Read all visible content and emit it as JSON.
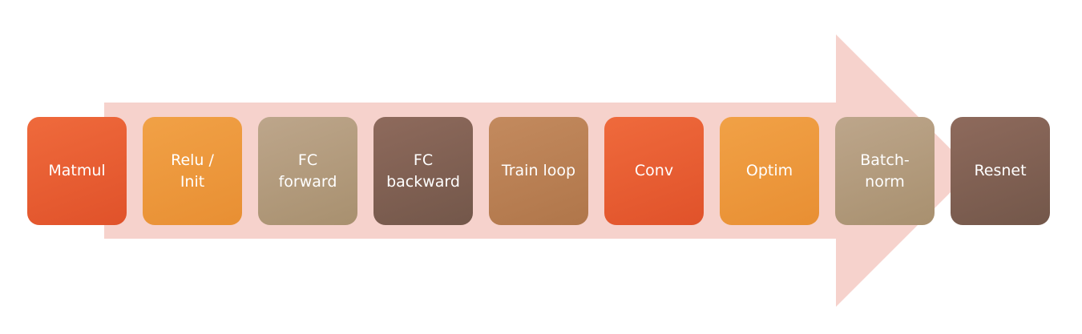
{
  "diagram": {
    "arrow": {
      "color": "#f6d2cc"
    },
    "steps": [
      {
        "label": "Matmul",
        "color_top": "#ef6a3c",
        "color_bottom": "#e0522a"
      },
      {
        "label": "Relu /\nInit",
        "color_top": "#f1a146",
        "color_bottom": "#e88f33"
      },
      {
        "label": "FC\nforward",
        "color_top": "#bda68b",
        "color_bottom": "#a8906f"
      },
      {
        "label": "FC\nbackward",
        "color_top": "#8e6a5c",
        "color_bottom": "#73574a"
      },
      {
        "label": "Train loop",
        "color_top": "#c38a5e",
        "color_bottom": "#b0764a"
      },
      {
        "label": "Conv",
        "color_top": "#ef6a3c",
        "color_bottom": "#e0522a"
      },
      {
        "label": "Optim",
        "color_top": "#f1a146",
        "color_bottom": "#e88f33"
      },
      {
        "label": "Batch-\nnorm",
        "color_top": "#bda68b",
        "color_bottom": "#a8906f"
      },
      {
        "label": "Resnet",
        "color_top": "#8e6a5c",
        "color_bottom": "#73574a"
      }
    ]
  }
}
